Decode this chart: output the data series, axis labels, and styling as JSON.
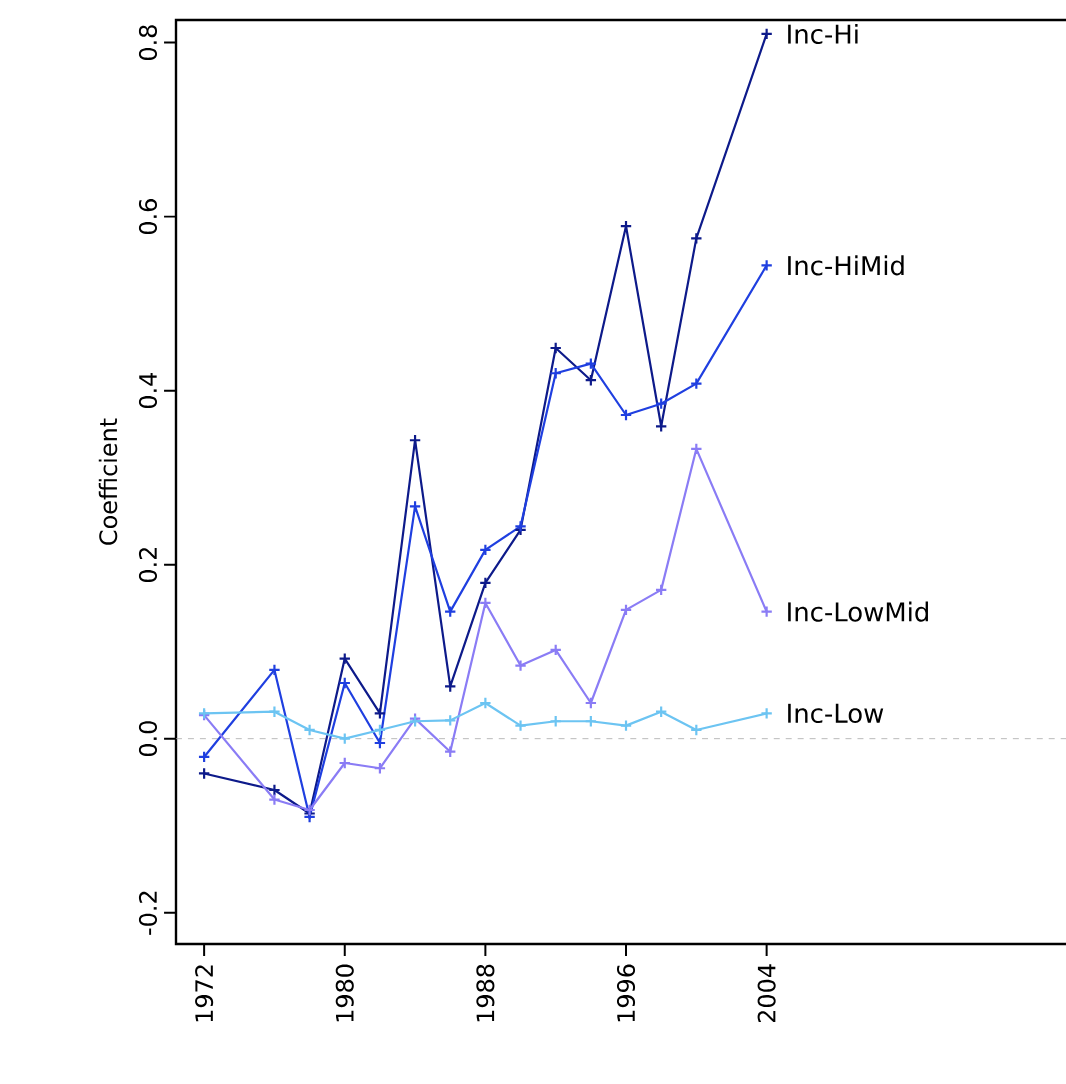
{
  "chart_data": {
    "type": "line",
    "ylabel": "Coefficient",
    "x": [
      1972,
      1976,
      1978,
      1980,
      1982,
      1984,
      1986,
      1988,
      1990,
      1992,
      1994,
      1996,
      1998,
      2000,
      2004
    ],
    "series": [
      {
        "name": "Inc-Hi",
        "color": "#0d1a8a",
        "values": [
          -0.04,
          -0.059,
          -0.086,
          0.092,
          0.029,
          0.343,
          0.06,
          0.179,
          0.24,
          0.449,
          0.412,
          0.589,
          0.359,
          0.575,
          0.81
        ]
      },
      {
        "name": "Inc-HiMid",
        "color": "#1f3fe0",
        "values": [
          -0.021,
          0.079,
          -0.09,
          0.064,
          -0.005,
          0.267,
          0.146,
          0.217,
          0.244,
          0.42,
          0.431,
          0.372,
          0.385,
          0.408,
          0.544
        ]
      },
      {
        "name": "Inc-LowMid",
        "color": "#8a7cf5",
        "values": [
          0.027,
          -0.07,
          -0.082,
          -0.028,
          -0.034,
          0.023,
          -0.015,
          0.156,
          0.084,
          0.102,
          0.041,
          0.148,
          0.171,
          0.333,
          0.146
        ]
      },
      {
        "name": "Inc-Low",
        "color": "#6cc4f2",
        "values": [
          0.029,
          0.031,
          0.01,
          0.0,
          0.01,
          0.02,
          0.021,
          0.041,
          0.015,
          0.02,
          0.02,
          0.015,
          0.031,
          0.01,
          0.029
        ]
      }
    ],
    "xlim": [
      1970.4,
      2021.6
    ],
    "xticks": [
      1972,
      1980,
      1988,
      1996,
      2004
    ],
    "ylim": [
      -0.236,
      0.826
    ],
    "yticks": [
      {
        "value": -0.2,
        "label": "-0.2"
      },
      {
        "value": 0,
        "label": "0.0"
      },
      {
        "value": 0.2,
        "label": "0.2"
      },
      {
        "value": 0.4,
        "label": "0.4"
      },
      {
        "value": 0.6,
        "label": "0.6"
      },
      {
        "value": 0.8,
        "label": "0.8"
      }
    ],
    "ref_lines": [
      {
        "axis": "y",
        "value": 0,
        "color": "#aaaaaa",
        "line_style": "dashed"
      }
    ],
    "marker": "cross",
    "line_style": "solid",
    "grid": false
  }
}
